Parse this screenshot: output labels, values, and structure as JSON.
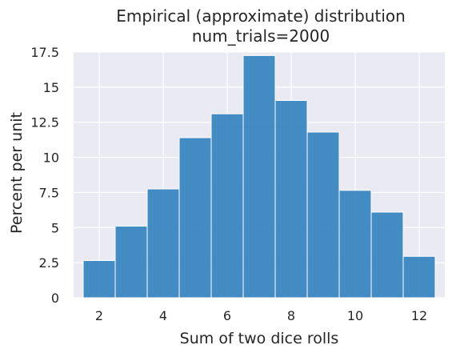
{
  "chart_data": {
    "type": "bar",
    "title": "Empirical (approximate) distribution",
    "subtitle": "num_trials=2000",
    "xlabel": "Sum of two dice rolls",
    "ylabel": "Percent per unit",
    "categories": [
      2,
      3,
      4,
      5,
      6,
      7,
      8,
      9,
      10,
      11,
      12
    ],
    "values": [
      2.65,
      5.1,
      7.75,
      11.4,
      13.1,
      17.25,
      14.05,
      11.8,
      7.65,
      6.1,
      2.95
    ],
    "xlim": [
      1.2,
      12.8
    ],
    "ylim": [
      0,
      17.5
    ],
    "xticks": [
      2,
      4,
      6,
      8,
      10,
      12
    ],
    "xtick_labels": [
      "2",
      "4",
      "6",
      "8",
      "10",
      "12"
    ],
    "yticks": [
      0,
      2.5,
      5,
      7.5,
      10,
      12.5,
      15,
      17.5
    ],
    "ytick_labels": [
      "0",
      "2.5",
      "5",
      "7.5",
      "10",
      "12.5",
      "15",
      "17.5"
    ],
    "grid": true,
    "colors": {
      "bar": "#3a87c0",
      "bar_edge": "#ffffff",
      "plot_background": "#eaeaf2",
      "grid": "#ffffff",
      "text": "#262626"
    }
  }
}
